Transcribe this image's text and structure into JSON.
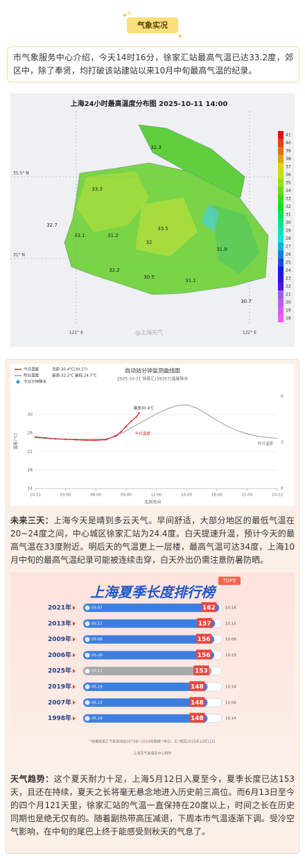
{
  "header": {
    "tag": "气象实况"
  },
  "intro": "市气象服务中心介绍，今天14时16分，徐家汇站最高气温已达33.2度，郊区中，除了奉贤，均打破该站建站以来10月中旬最高气温的纪录。",
  "map": {
    "title": "上海24小时最高温度分布图  2025-10-11  14:00",
    "lat_labels": [
      "31.5° N",
      "31° N"
    ],
    "lon_labels": [
      "121° E",
      "122° E"
    ],
    "legend_ticks": [
      41,
      40,
      39,
      38,
      37,
      36,
      35,
      34,
      33,
      32,
      31,
      30,
      29,
      28,
      27,
      26,
      25,
      24,
      23,
      22,
      21,
      20,
      19,
      18
    ],
    "stations": [
      32.3,
      33.3,
      33.1,
      31.2,
      33.5,
      32.0,
      31.9,
      32.2,
      30.5,
      32.7,
      31.1,
      30.7
    ],
    "watermark": "@上海天气"
  },
  "chart_data": [
    {
      "type": "line",
      "title": "自动站分钟监测曲线图",
      "subtitle": "2025-10-11 徐家汇(58367)温度降水",
      "xlabel": "北京时间",
      "ylabel": "温度(°C)",
      "xlim": [
        0,
        24
      ],
      "xticks": [
        {
          "value": 0,
          "label": "10-11"
        },
        {
          "value": 3,
          "label": "03:00"
        },
        {
          "value": 6,
          "label": "06:00"
        },
        {
          "value": 9,
          "label": "09:00"
        },
        {
          "value": 12,
          "label": "12:00"
        },
        {
          "value": 15,
          "label": "15:00"
        },
        {
          "value": 18,
          "label": "18:00"
        },
        {
          "value": 21,
          "label": "21:00"
        },
        {
          "value": 24,
          "label": "10-12"
        }
      ],
      "ylim": [
        14,
        34
      ],
      "yticks": [
        14,
        18,
        22,
        26,
        30
      ],
      "y2lim": [
        0,
        6
      ],
      "y2ticks": [
        0,
        3,
        6
      ],
      "series": [
        {
          "name": "今日温度",
          "color": "#d9262b",
          "note": "当前:30.4℃(30.27)",
          "x": [
            0,
            1,
            2,
            3,
            4,
            5,
            6,
            7,
            8,
            8.5,
            9,
            9.5,
            10,
            10.3
          ],
          "values": [
            25.2,
            25.0,
            24.8,
            24.7,
            24.6,
            24.5,
            24.5,
            24.6,
            25.5,
            26.3,
            27.5,
            28.6,
            29.5,
            30.4
          ]
        },
        {
          "name": "昨日温度",
          "color": "#9a9a9a",
          "note": "最高:32.2℃  最低:24.7℃",
          "x": [
            0,
            1,
            2,
            3,
            4,
            5,
            6,
            7,
            8,
            9,
            10,
            11,
            12,
            13,
            14,
            15,
            16,
            17,
            18,
            19,
            20,
            21,
            22,
            23,
            24
          ],
          "values": [
            25.0,
            24.9,
            24.8,
            24.7,
            24.7,
            24.7,
            24.7,
            24.8,
            25.3,
            26.5,
            27.8,
            29.0,
            30.2,
            31.2,
            32.0,
            32.2,
            31.5,
            30.2,
            28.8,
            27.6,
            26.6,
            25.9,
            25.4,
            25.1,
            24.9
          ]
        },
        {
          "name": "今日分钟降水",
          "color": "#3a8ee6",
          "axis": "y2",
          "x": [],
          "values": []
        }
      ],
      "annotation": "最高30.4℃"
    },
    {
      "type": "bar",
      "orientation": "horizontal",
      "title": "上海夏季长度排行榜",
      "badge": "TOP5",
      "categories": [
        "2021年",
        "2013年",
        "2009年",
        "2006年",
        "2025年",
        "2019年",
        "2007年",
        "1998年"
      ],
      "values": [
        162,
        157,
        156,
        156,
        153,
        148,
        148,
        148
      ],
      "start_labels": [
        "05.07",
        "05.11",
        "05.06",
        "05.20",
        "05.12",
        "05.19",
        "05.13",
        "05.19"
      ],
      "end_labels": [
        "10.16",
        "10.15",
        "10.09",
        "10.23",
        null,
        "10.14",
        "10.08",
        "10.14"
      ],
      "colors": [
        "#3d7fe0",
        "#3d7fe0",
        "#3d7fe0",
        "#3d7fe0",
        "#a8a8a8",
        "#3d7fe0",
        "#3d7fe0",
        "#3d7fe0"
      ],
      "xlim": [
        0,
        165
      ],
      "note": "*依据徐家汇气象观测站1873年~2024年数据  *单位：天  *截至2025年10月11日",
      "credit": "上海市气象服务中心制作"
    }
  ],
  "forecast": {
    "label": "未来三天：",
    "text": "上海今天是晴到多云天气。早间舒适，大部分地区的最低气温在20~24度之间，中心城区徐家汇站为24.4度。白天提速升温，预计今天的最高气温在33度附近。明后天的气温更上一层楼，最高气温可达34度，上海10月中旬的最高气温纪录可能被连续击穿，白天外出仍需注意防暑防晒。"
  },
  "trend": {
    "label": "天气趋势：",
    "text": "这个夏天耐力十足，上海5月12日入夏至今，夏季长度已达153天，且还在持续，夏天之长将毫无悬念地进入历史前三高位。而6月13日至今的四个月121天里，徐家汇站的气温一直保持在20度以上，时间之长在历史同期也是绝无仅有的。随着副热带高压减退，下周本市气温逐渐下调。受冷空气影响，在中旬的尾巴上终于能感受到秋天的气息了。"
  }
}
